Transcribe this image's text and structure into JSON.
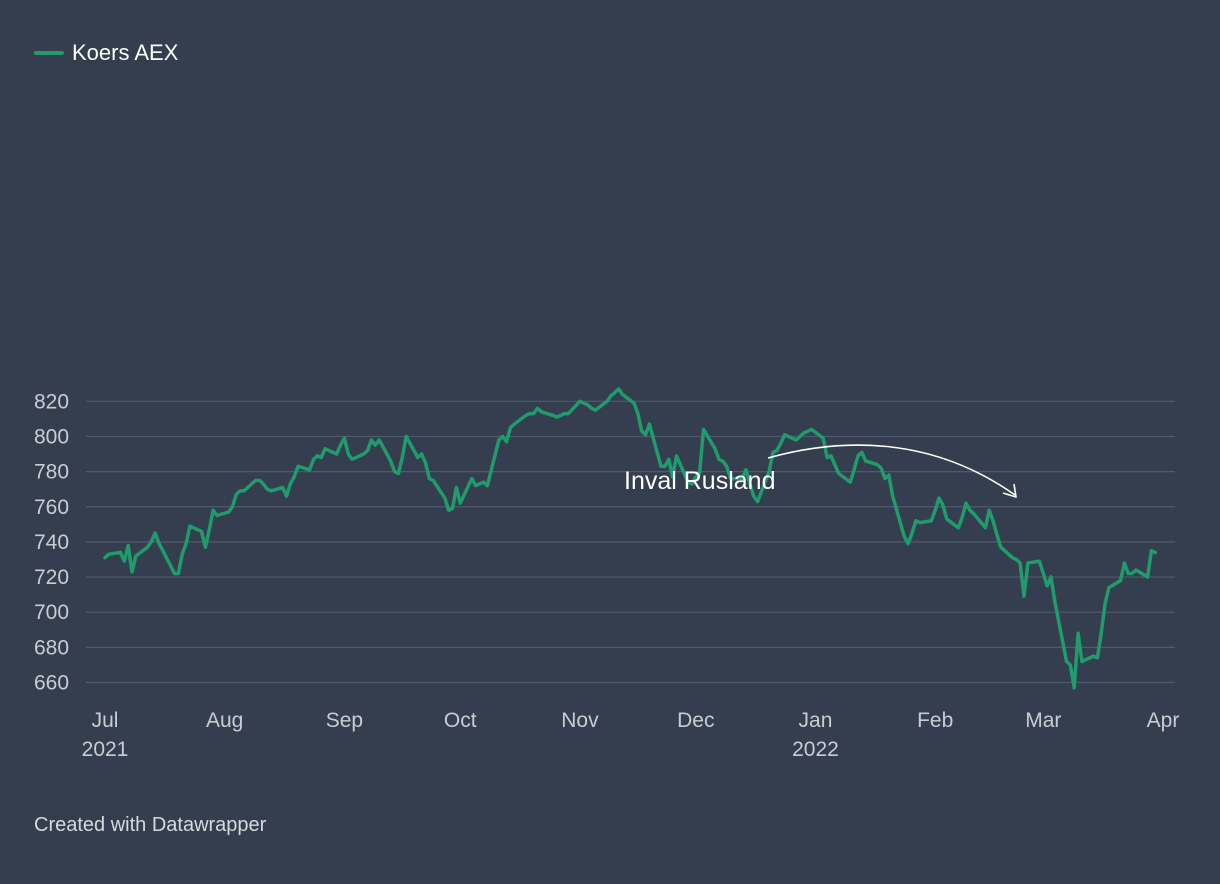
{
  "legend": {
    "label": "Koers AEX",
    "color": "#1f9b6c"
  },
  "annotation": {
    "text": "Inval Rusland"
  },
  "footer": {
    "text": "Created with Datawrapper"
  },
  "colors": {
    "background": "#343e4e",
    "grid": "#4f5a6a",
    "tick_text": "#c9cdd3",
    "line": "#1f9b6c",
    "annotation": "#ffffff"
  },
  "chart_data": {
    "type": "line",
    "grid": true,
    "legend_position": "top-left",
    "ylim": [
      655,
      830
    ],
    "xlim": [
      "2021-07-01",
      "2022-04-01"
    ],
    "y_ticks": [
      660,
      680,
      700,
      720,
      740,
      760,
      780,
      800,
      820
    ],
    "x_ticks": [
      {
        "date": "2021-07-01",
        "label": "Jul",
        "sublabel": "2021"
      },
      {
        "date": "2021-08-01",
        "label": "Aug",
        "sublabel": ""
      },
      {
        "date": "2021-09-01",
        "label": "Sep",
        "sublabel": ""
      },
      {
        "date": "2021-10-01",
        "label": "Oct",
        "sublabel": ""
      },
      {
        "date": "2021-11-01",
        "label": "Nov",
        "sublabel": ""
      },
      {
        "date": "2021-12-01",
        "label": "Dec",
        "sublabel": ""
      },
      {
        "date": "2022-01-01",
        "label": "Jan",
        "sublabel": "2022"
      },
      {
        "date": "2022-02-01",
        "label": "Feb",
        "sublabel": ""
      },
      {
        "date": "2022-03-01",
        "label": "Mar",
        "sublabel": ""
      },
      {
        "date": "2022-04-01",
        "label": "Apr",
        "sublabel": ""
      }
    ],
    "series": [
      {
        "name": "Koers AEX",
        "points": [
          [
            "2021-07-01",
            731
          ],
          [
            "2021-07-02",
            733
          ],
          [
            "2021-07-05",
            734
          ],
          [
            "2021-07-06",
            729
          ],
          [
            "2021-07-07",
            738
          ],
          [
            "2021-07-08",
            723
          ],
          [
            "2021-07-09",
            732
          ],
          [
            "2021-07-12",
            737
          ],
          [
            "2021-07-13",
            740
          ],
          [
            "2021-07-14",
            745
          ],
          [
            "2021-07-15",
            739
          ],
          [
            "2021-07-16",
            735
          ],
          [
            "2021-07-19",
            722
          ],
          [
            "2021-07-20",
            722
          ],
          [
            "2021-07-21",
            733
          ],
          [
            "2021-07-22",
            739
          ],
          [
            "2021-07-23",
            749
          ],
          [
            "2021-07-26",
            746
          ],
          [
            "2021-07-27",
            737
          ],
          [
            "2021-07-28",
            747
          ],
          [
            "2021-07-29",
            758
          ],
          [
            "2021-07-30",
            755
          ],
          [
            "2021-08-02",
            757
          ],
          [
            "2021-08-03",
            760
          ],
          [
            "2021-08-04",
            767
          ],
          [
            "2021-08-05",
            769
          ],
          [
            "2021-08-06",
            769
          ],
          [
            "2021-08-09",
            775
          ],
          [
            "2021-08-10",
            775
          ],
          [
            "2021-08-11",
            773
          ],
          [
            "2021-08-12",
            770
          ],
          [
            "2021-08-13",
            769
          ],
          [
            "2021-08-16",
            771
          ],
          [
            "2021-08-17",
            766
          ],
          [
            "2021-08-18",
            773
          ],
          [
            "2021-08-19",
            777
          ],
          [
            "2021-08-20",
            783
          ],
          [
            "2021-08-23",
            781
          ],
          [
            "2021-08-24",
            787
          ],
          [
            "2021-08-25",
            789
          ],
          [
            "2021-08-26",
            788
          ],
          [
            "2021-08-27",
            793
          ],
          [
            "2021-08-30",
            790
          ],
          [
            "2021-08-31",
            795
          ],
          [
            "2021-09-01",
            799
          ],
          [
            "2021-09-02",
            790
          ],
          [
            "2021-09-03",
            787
          ],
          [
            "2021-09-06",
            790
          ],
          [
            "2021-09-07",
            792
          ],
          [
            "2021-09-08",
            798
          ],
          [
            "2021-09-09",
            795
          ],
          [
            "2021-09-10",
            798
          ],
          [
            "2021-09-13",
            786
          ],
          [
            "2021-09-14",
            780
          ],
          [
            "2021-09-15",
            779
          ],
          [
            "2021-09-16",
            788
          ],
          [
            "2021-09-17",
            800
          ],
          [
            "2021-09-20",
            788
          ],
          [
            "2021-09-21",
            790
          ],
          [
            "2021-09-22",
            785
          ],
          [
            "2021-09-23",
            776
          ],
          [
            "2021-09-24",
            775
          ],
          [
            "2021-09-27",
            765
          ],
          [
            "2021-09-28",
            758
          ],
          [
            "2021-09-29",
            759
          ],
          [
            "2021-09-30",
            771
          ],
          [
            "2021-10-01",
            762
          ],
          [
            "2021-10-04",
            776
          ],
          [
            "2021-10-05",
            772
          ],
          [
            "2021-10-06",
            773
          ],
          [
            "2021-10-07",
            774
          ],
          [
            "2021-10-08",
            772
          ],
          [
            "2021-10-11",
            798
          ],
          [
            "2021-10-12",
            800
          ],
          [
            "2021-10-13",
            797
          ],
          [
            "2021-10-14",
            805
          ],
          [
            "2021-10-15",
            807
          ],
          [
            "2021-10-18",
            812
          ],
          [
            "2021-10-19",
            813
          ],
          [
            "2021-10-20",
            813
          ],
          [
            "2021-10-21",
            816
          ],
          [
            "2021-10-22",
            814
          ],
          [
            "2021-10-25",
            812
          ],
          [
            "2021-10-26",
            811
          ],
          [
            "2021-10-27",
            812
          ],
          [
            "2021-10-28",
            813
          ],
          [
            "2021-10-29",
            813
          ],
          [
            "2021-11-01",
            820
          ],
          [
            "2021-11-02",
            819
          ],
          [
            "2021-11-03",
            818
          ],
          [
            "2021-11-04",
            816
          ],
          [
            "2021-11-05",
            815
          ],
          [
            "2021-11-08",
            820
          ],
          [
            "2021-11-09",
            823
          ],
          [
            "2021-11-10",
            825
          ],
          [
            "2021-11-11",
            827
          ],
          [
            "2021-11-12",
            824
          ],
          [
            "2021-11-15",
            819
          ],
          [
            "2021-11-16",
            813
          ],
          [
            "2021-11-17",
            803
          ],
          [
            "2021-11-18",
            801
          ],
          [
            "2021-11-19",
            807
          ],
          [
            "2021-11-22",
            783
          ],
          [
            "2021-11-23",
            783
          ],
          [
            "2021-11-24",
            787
          ],
          [
            "2021-11-25",
            777
          ],
          [
            "2021-11-26",
            789
          ],
          [
            "2021-11-29",
            774
          ],
          [
            "2021-11-30",
            773
          ],
          [
            "2021-12-01",
            777
          ],
          [
            "2021-12-02",
            779
          ],
          [
            "2021-12-03",
            804
          ],
          [
            "2021-12-06",
            793
          ],
          [
            "2021-12-07",
            787
          ],
          [
            "2021-12-08",
            786
          ],
          [
            "2021-12-09",
            783
          ],
          [
            "2021-12-10",
            776
          ],
          [
            "2021-12-13",
            776
          ],
          [
            "2021-12-14",
            781
          ],
          [
            "2021-12-15",
            773
          ],
          [
            "2021-12-16",
            766
          ],
          [
            "2021-12-17",
            763
          ],
          [
            "2021-12-20",
            780
          ],
          [
            "2021-12-21",
            791
          ],
          [
            "2021-12-22",
            792
          ],
          [
            "2021-12-23",
            796
          ],
          [
            "2021-12-24",
            801
          ],
          [
            "2021-12-27",
            798
          ],
          [
            "2021-12-28",
            800
          ],
          [
            "2021-12-29",
            802
          ],
          [
            "2021-12-30",
            803
          ],
          [
            "2021-12-31",
            804
          ],
          [
            "2022-01-03",
            799
          ],
          [
            "2022-01-04",
            788
          ],
          [
            "2022-01-05",
            789
          ],
          [
            "2022-01-06",
            784
          ],
          [
            "2022-01-07",
            779
          ],
          [
            "2022-01-10",
            774
          ],
          [
            "2022-01-11",
            781
          ],
          [
            "2022-01-12",
            789
          ],
          [
            "2022-01-13",
            791
          ],
          [
            "2022-01-14",
            786
          ],
          [
            "2022-01-17",
            784
          ],
          [
            "2022-01-18",
            782
          ],
          [
            "2022-01-19",
            776
          ],
          [
            "2022-01-20",
            778
          ],
          [
            "2022-01-21",
            766
          ],
          [
            "2022-01-24",
            743
          ],
          [
            "2022-01-25",
            739
          ],
          [
            "2022-01-26",
            745
          ],
          [
            "2022-01-27",
            752
          ],
          [
            "2022-01-28",
            751
          ],
          [
            "2022-01-31",
            752
          ],
          [
            "2022-02-01",
            758
          ],
          [
            "2022-02-02",
            765
          ],
          [
            "2022-02-03",
            761
          ],
          [
            "2022-02-04",
            753
          ],
          [
            "2022-02-07",
            748
          ],
          [
            "2022-02-08",
            754
          ],
          [
            "2022-02-09",
            762
          ],
          [
            "2022-02-10",
            758
          ],
          [
            "2022-02-11",
            756
          ],
          [
            "2022-02-14",
            748
          ],
          [
            "2022-02-15",
            758
          ],
          [
            "2022-02-16",
            752
          ],
          [
            "2022-02-17",
            744
          ],
          [
            "2022-02-18",
            737
          ],
          [
            "2022-02-21",
            731
          ],
          [
            "2022-02-22",
            730
          ],
          [
            "2022-02-23",
            728
          ],
          [
            "2022-02-24",
            709
          ],
          [
            "2022-02-25",
            728
          ],
          [
            "2022-02-28",
            729
          ],
          [
            "2022-03-01",
            722
          ],
          [
            "2022-03-02",
            715
          ],
          [
            "2022-03-03",
            720
          ],
          [
            "2022-03-04",
            706
          ],
          [
            "2022-03-07",
            672
          ],
          [
            "2022-03-08",
            670
          ],
          [
            "2022-03-09",
            657
          ],
          [
            "2022-03-10",
            688
          ],
          [
            "2022-03-11",
            672
          ],
          [
            "2022-03-14",
            675
          ],
          [
            "2022-03-15",
            674
          ],
          [
            "2022-03-16",
            688
          ],
          [
            "2022-03-17",
            705
          ],
          [
            "2022-03-18",
            714
          ],
          [
            "2022-03-21",
            718
          ],
          [
            "2022-03-22",
            728
          ],
          [
            "2022-03-23",
            722
          ],
          [
            "2022-03-24",
            722
          ],
          [
            "2022-03-25",
            724
          ],
          [
            "2022-03-28",
            720
          ],
          [
            "2022-03-29",
            735
          ],
          [
            "2022-03-30",
            734
          ]
        ]
      }
    ]
  }
}
